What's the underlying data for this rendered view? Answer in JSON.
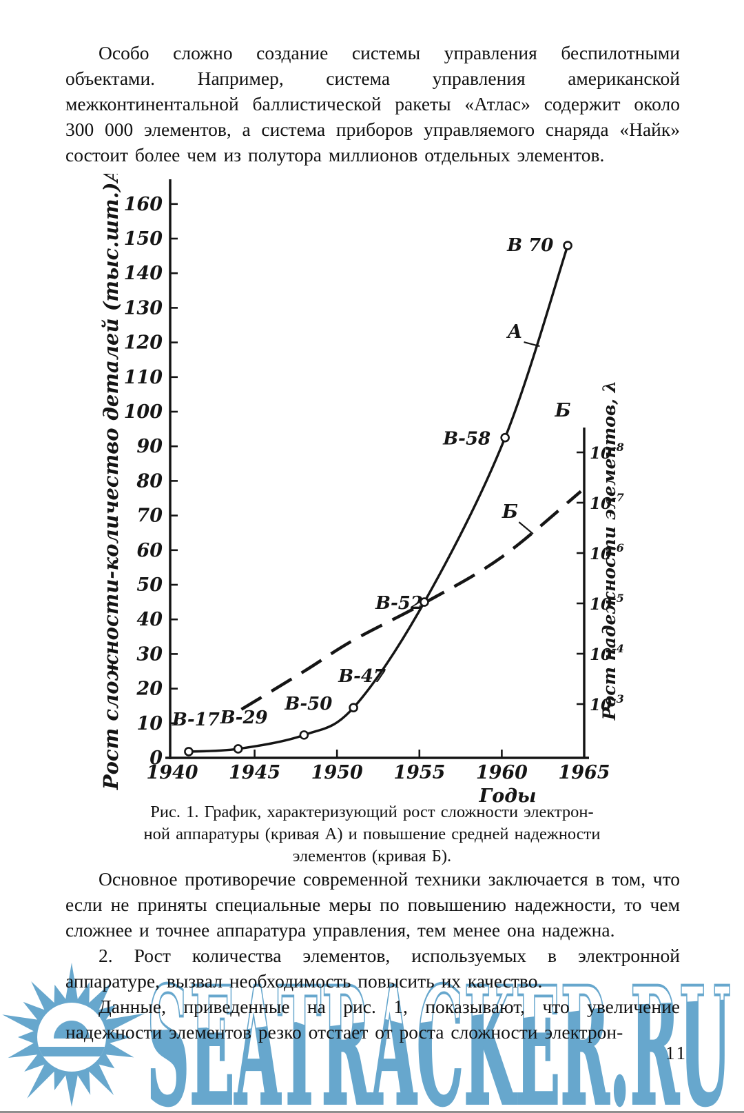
{
  "page": {
    "paragraphs": [
      "Особо сложно создание системы управления беспилотными объектами. Например, система управления американской межконтинентальной баллистической ракеты «Атлас» содержит около 300 000 элементов, а система приборов управляемого снаряда «Найк» состоит более чем из полутора миллионов отдельных элементов.",
      "Основное противоречие современной техники заключается в том, что если не приняты специальные меры по повышению надежности, то чем сложнее и точнее аппаратура управления, тем менее она надежна.",
      "2. Рост количества элементов, используемых в электронной аппаратуре, вызвал необходимость повысить их качество.",
      "Данные, приведенные на рис. 1, показывают, что увеличение надежности элементов резко отстает от роста сложности электрон-"
    ],
    "caption": {
      "lines": [
        "Рис. 1. График, характеризующий рост сложности электрон-",
        "ной аппаратуры (кривая А) и повышение средней надежности",
        "элементов (кривая Б)."
      ]
    },
    "page_number": "11",
    "watermark": {
      "text": "SEATRACKER.RU",
      "color": "#5fa3cb"
    }
  },
  "chart_data": {
    "type": "line",
    "title": "",
    "xlabel": "Годы",
    "x_range": [
      1940,
      1965
    ],
    "x_ticks": [
      1940,
      1945,
      1950,
      1955,
      1960,
      1965
    ],
    "grid": false,
    "left_axis": {
      "label": "Рост сложности-количество деталей (тыс.шт.)А",
      "ticks": [
        0,
        10,
        20,
        30,
        40,
        50,
        60,
        70,
        80,
        90,
        100,
        110,
        120,
        130,
        140,
        150,
        160
      ],
      "range": [
        0,
        170
      ]
    },
    "right_axis": {
      "name": "Б",
      "label": "Рост надежности элементов, λ",
      "scale": "log",
      "tick_base": "10",
      "tick_exponents": [
        -8,
        -7,
        -6,
        -5,
        -4,
        -3
      ]
    },
    "series": [
      {
        "name": "А",
        "style": "solid",
        "marker": "circle",
        "points": [
          {
            "x": 1941.0,
            "y": 1.8,
            "label": "В-17"
          },
          {
            "x": 1944.0,
            "y": 2.6,
            "label": "В-29"
          },
          {
            "x": 1948.0,
            "y": 6.6,
            "label": "В-50"
          },
          {
            "x": 1951.0,
            "y": 14.5,
            "label": "В-47"
          },
          {
            "x": 1955.3,
            "y": 45.0,
            "label": "В-52"
          },
          {
            "x": 1960.2,
            "y": 92.5,
            "label": "В-58"
          },
          {
            "x": 1964.0,
            "y": 148.0,
            "label": "В 70"
          }
        ]
      },
      {
        "name": "Б",
        "style": "dashed",
        "marker": "none",
        "axis": "right",
        "points": [
          {
            "x": 1944.2,
            "y": 14.0
          },
          {
            "x": 1948.0,
            "y": 25.0
          },
          {
            "x": 1951.0,
            "y": 34.0
          },
          {
            "x": 1955.4,
            "y": 45.0
          },
          {
            "x": 1960.0,
            "y": 58.0
          },
          {
            "x": 1964.8,
            "y": 77.0
          }
        ]
      }
    ],
    "annotations": [
      {
        "text": "А",
        "x": 1960.8,
        "y": 121.3,
        "leader_to": {
          "x": 1962.3,
          "y": 118.9
        }
      },
      {
        "text": "Б",
        "x": 1960.5,
        "y": 69.3,
        "leader_to": {
          "x": 1961.9,
          "y": 64.7
        }
      }
    ]
  }
}
